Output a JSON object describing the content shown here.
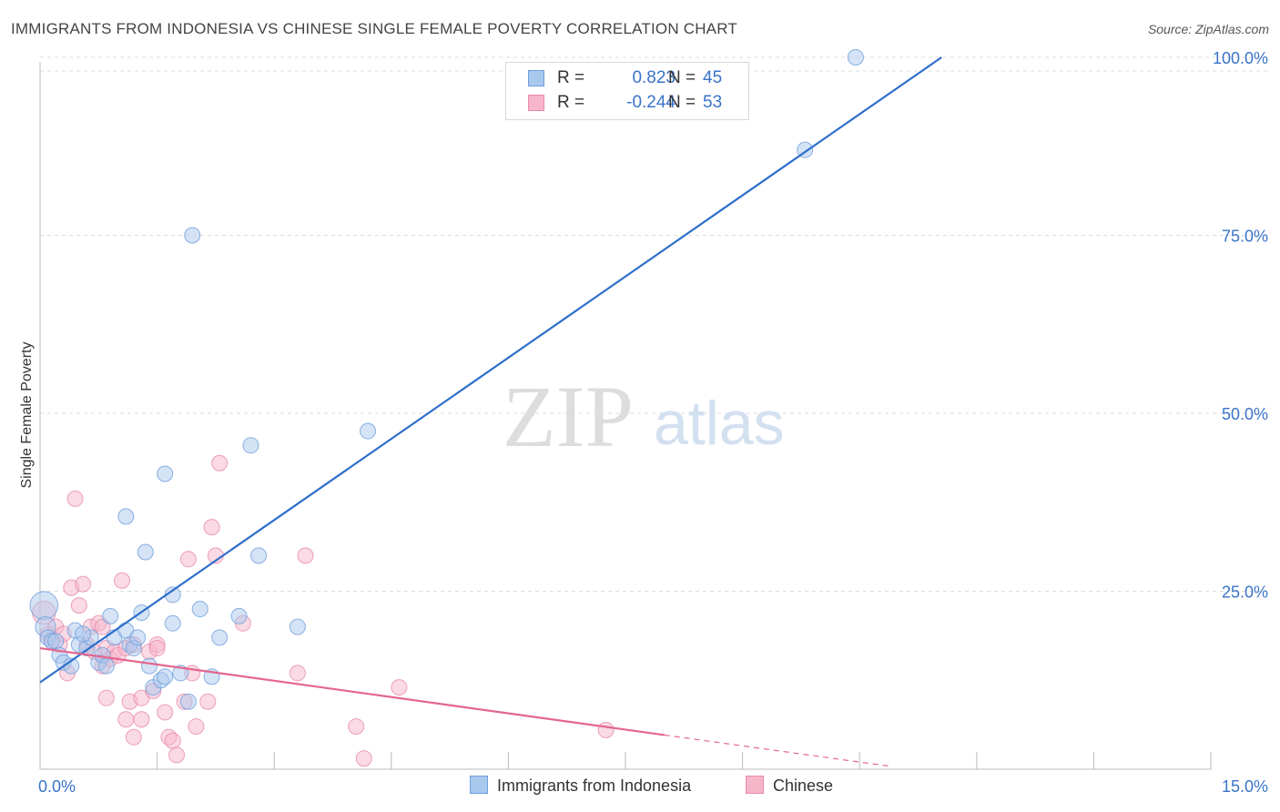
{
  "header": {
    "title": "IMMIGRANTS FROM INDONESIA VS CHINESE SINGLE FEMALE POVERTY CORRELATION CHART",
    "source": "Source: ZipAtlas.com"
  },
  "watermark": {
    "zip": "ZIP",
    "atlas": "atlas"
  },
  "legend_stats": {
    "series1": {
      "r_label": "R =",
      "r_value": "0.823",
      "n_label": "N =",
      "n_value": "45"
    },
    "series2": {
      "r_label": "R =",
      "r_value": "-0.244",
      "n_label": "N =",
      "n_value": "53"
    }
  },
  "colors": {
    "blue_fill": "#a9c8ee",
    "blue_stroke": "#6f9fdc",
    "blue_line": "#2f6fcb",
    "pink_fill": "#f6b6ca",
    "pink_stroke": "#e88aaa",
    "pink_line": "#e4668f",
    "tick_text": "#3a73c9",
    "grid": "#dddddd"
  },
  "chart_data": {
    "type": "scatter",
    "title": "IMMIGRANTS FROM INDONESIA VS CHINESE SINGLE FEMALE POVERTY CORRELATION CHART",
    "xlabel": "",
    "ylabel": "Single Female Poverty",
    "xlim": [
      0,
      15
    ],
    "ylim": [
      0,
      100
    ],
    "x_tick_labels": [
      "0.0%",
      "15.0%"
    ],
    "y_ticks": [
      25,
      50,
      75,
      100
    ],
    "y_tick_labels": [
      "25.0%",
      "50.0%",
      "75.0%",
      "100.0%"
    ],
    "grid": true,
    "legend_position": "bottom-center",
    "series": [
      {
        "name": "Immigrants from Indonesia",
        "color": "#a9c8ee",
        "r": 0.823,
        "n": 45,
        "trendline": {
          "x": [
            0,
            11.55
          ],
          "y": [
            12.2,
            100
          ]
        },
        "points": [
          {
            "x": 0.05,
            "y": 23.0,
            "s": 1.8
          },
          {
            "x": 0.07,
            "y": 20.0,
            "s": 1.3
          },
          {
            "x": 0.1,
            "y": 18.5
          },
          {
            "x": 0.15,
            "y": 18.0
          },
          {
            "x": 0.2,
            "y": 18.0
          },
          {
            "x": 0.25,
            "y": 16.0
          },
          {
            "x": 0.3,
            "y": 15.0
          },
          {
            "x": 0.4,
            "y": 14.5
          },
          {
            "x": 0.45,
            "y": 19.5
          },
          {
            "x": 0.5,
            "y": 17.5
          },
          {
            "x": 0.6,
            "y": 17.0
          },
          {
            "x": 0.65,
            "y": 18.5
          },
          {
            "x": 0.75,
            "y": 15.0
          },
          {
            "x": 0.8,
            "y": 16.0
          },
          {
            "x": 0.85,
            "y": 14.5
          },
          {
            "x": 0.9,
            "y": 21.5
          },
          {
            "x": 0.95,
            "y": 18.5
          },
          {
            "x": 1.1,
            "y": 19.5
          },
          {
            "x": 1.15,
            "y": 17.5
          },
          {
            "x": 1.2,
            "y": 17.0
          },
          {
            "x": 1.1,
            "y": 35.5
          },
          {
            "x": 1.25,
            "y": 18.5
          },
          {
            "x": 1.3,
            "y": 22.0
          },
          {
            "x": 1.35,
            "y": 30.5
          },
          {
            "x": 1.4,
            "y": 14.5
          },
          {
            "x": 1.45,
            "y": 11.5
          },
          {
            "x": 1.55,
            "y": 12.5
          },
          {
            "x": 1.6,
            "y": 13.0
          },
          {
            "x": 1.6,
            "y": 41.5
          },
          {
            "x": 1.7,
            "y": 24.5
          },
          {
            "x": 1.7,
            "y": 20.5
          },
          {
            "x": 1.8,
            "y": 13.5
          },
          {
            "x": 1.9,
            "y": 9.5
          },
          {
            "x": 1.95,
            "y": 75.0
          },
          {
            "x": 2.05,
            "y": 22.5
          },
          {
            "x": 2.2,
            "y": 13.0
          },
          {
            "x": 2.3,
            "y": 18.5
          },
          {
            "x": 2.55,
            "y": 21.5
          },
          {
            "x": 2.7,
            "y": 45.5
          },
          {
            "x": 2.8,
            "y": 30.0
          },
          {
            "x": 3.3,
            "y": 20.0
          },
          {
            "x": 4.2,
            "y": 47.5
          },
          {
            "x": 9.8,
            "y": 87.0
          },
          {
            "x": 10.45,
            "y": 100.0
          },
          {
            "x": 0.55,
            "y": 19.0
          }
        ]
      },
      {
        "name": "Chinese",
        "color": "#f6b6ca",
        "r": -0.244,
        "n": 53,
        "trendline": {
          "x": [
            0,
            8.0
          ],
          "y": [
            17.0,
            4.8
          ]
        },
        "trendline_dashed": {
          "x": [
            8.0,
            10.9
          ],
          "y": [
            4.8,
            0.4
          ]
        },
        "points": [
          {
            "x": 0.05,
            "y": 22.0,
            "s": 1.5
          },
          {
            "x": 0.1,
            "y": 19.0
          },
          {
            "x": 0.15,
            "y": 18.0
          },
          {
            "x": 0.2,
            "y": 20.0
          },
          {
            "x": 0.25,
            "y": 17.5
          },
          {
            "x": 0.3,
            "y": 19.0
          },
          {
            "x": 0.35,
            "y": 13.5
          },
          {
            "x": 0.4,
            "y": 25.5
          },
          {
            "x": 0.45,
            "y": 38.0
          },
          {
            "x": 0.5,
            "y": 23.0
          },
          {
            "x": 0.55,
            "y": 26.0
          },
          {
            "x": 0.6,
            "y": 17.5
          },
          {
            "x": 0.65,
            "y": 20.0
          },
          {
            "x": 0.7,
            "y": 16.5
          },
          {
            "x": 0.75,
            "y": 20.5
          },
          {
            "x": 0.8,
            "y": 14.5
          },
          {
            "x": 0.85,
            "y": 17.0
          },
          {
            "x": 0.85,
            "y": 10.0
          },
          {
            "x": 0.9,
            "y": 15.5
          },
          {
            "x": 0.95,
            "y": 16.5
          },
          {
            "x": 1.0,
            "y": 16.0
          },
          {
            "x": 1.05,
            "y": 26.5
          },
          {
            "x": 1.1,
            "y": 17.0
          },
          {
            "x": 1.1,
            "y": 7.0
          },
          {
            "x": 1.15,
            "y": 9.5
          },
          {
            "x": 1.2,
            "y": 17.5
          },
          {
            "x": 1.2,
            "y": 4.5
          },
          {
            "x": 1.3,
            "y": 7.0
          },
          {
            "x": 1.3,
            "y": 10.0
          },
          {
            "x": 1.4,
            "y": 16.5
          },
          {
            "x": 1.45,
            "y": 11.0
          },
          {
            "x": 1.5,
            "y": 17.5
          },
          {
            "x": 1.5,
            "y": 17.0
          },
          {
            "x": 1.6,
            "y": 8.0
          },
          {
            "x": 1.65,
            "y": 4.5
          },
          {
            "x": 1.7,
            "y": 4.0
          },
          {
            "x": 1.75,
            "y": 2.0
          },
          {
            "x": 1.85,
            "y": 9.5
          },
          {
            "x": 1.9,
            "y": 29.5
          },
          {
            "x": 1.95,
            "y": 13.5
          },
          {
            "x": 2.0,
            "y": 6.0
          },
          {
            "x": 2.15,
            "y": 9.5
          },
          {
            "x": 2.2,
            "y": 34.0
          },
          {
            "x": 2.25,
            "y": 30.0
          },
          {
            "x": 2.3,
            "y": 43.0
          },
          {
            "x": 2.6,
            "y": 20.5
          },
          {
            "x": 3.3,
            "y": 13.5
          },
          {
            "x": 3.4,
            "y": 30.0
          },
          {
            "x": 4.05,
            "y": 6.0
          },
          {
            "x": 4.15,
            "y": 1.5
          },
          {
            "x": 4.6,
            "y": 11.5
          },
          {
            "x": 7.25,
            "y": 5.5
          },
          {
            "x": 0.8,
            "y": 20.0
          }
        ]
      }
    ]
  }
}
